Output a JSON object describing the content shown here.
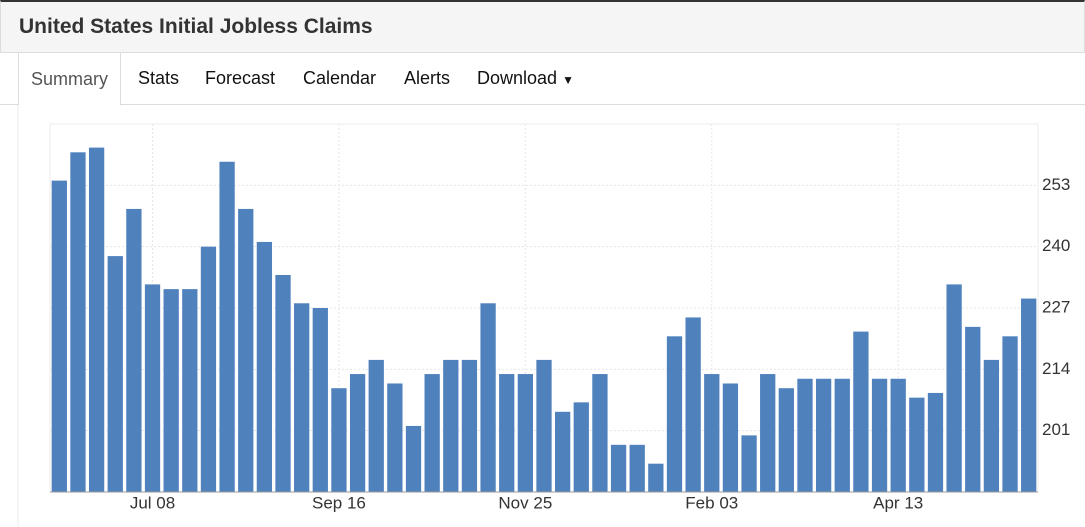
{
  "header": {
    "title": "United States Initial Jobless Claims"
  },
  "tabs": [
    "Summary",
    "Stats",
    "Forecast",
    "Calendar",
    "Alerts",
    "Download"
  ],
  "chart_data": {
    "type": "bar",
    "color": "#4f81bd",
    "categories": [
      null,
      null,
      null,
      null,
      null,
      "Jul 08",
      null,
      null,
      null,
      null,
      null,
      null,
      null,
      null,
      null,
      "Sep 16",
      null,
      null,
      null,
      null,
      null,
      null,
      null,
      null,
      null,
      "Nov 25",
      null,
      null,
      null,
      null,
      null,
      null,
      null,
      null,
      null,
      "Feb 03",
      null,
      null,
      null,
      null,
      null,
      null,
      null,
      null,
      null,
      "Apr 13",
      null,
      null,
      null,
      null,
      null,
      null,
      null
    ],
    "values": [
      254,
      260,
      261,
      238,
      248,
      232,
      231,
      231,
      240,
      258,
      248,
      241,
      234,
      228,
      227,
      210,
      213,
      216,
      211,
      202,
      213,
      216,
      216,
      228,
      213,
      213,
      216,
      205,
      207,
      213,
      198,
      198,
      194,
      221,
      225,
      213,
      211,
      200,
      213,
      210,
      212,
      212,
      212,
      222,
      212,
      212,
      208,
      209,
      232,
      223,
      216,
      221,
      229
    ],
    "ylim": [
      188,
      266
    ],
    "yticks": [
      201,
      214,
      227,
      240,
      253
    ],
    "grid": true
  }
}
